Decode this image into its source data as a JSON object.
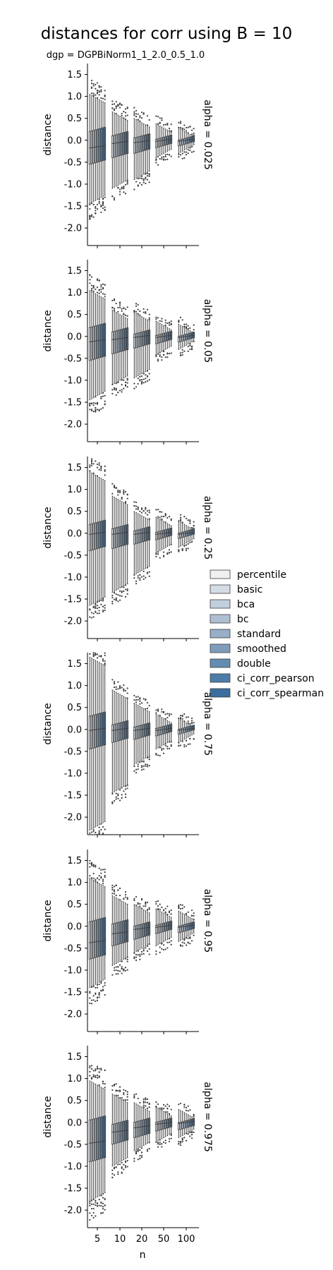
{
  "chart_data": {
    "type": "box",
    "title": "distances for corr using B = 10",
    "subtitle": "dgp = DGPBiNorm1_1_2.0_0.5_1.0",
    "xlabel": "n",
    "ylabel": "distance",
    "categories": [
      "5",
      "10",
      "20",
      "50",
      "100"
    ],
    "yticks": [
      "1.5",
      "1.0",
      "0.5",
      "0.0",
      "-0.5",
      "-1.0",
      "-1.5",
      "-2.0"
    ],
    "ylim": [
      -2.4,
      1.75
    ],
    "legend": {
      "placement": "right",
      "entries": [
        "percentile",
        "basic",
        "bca",
        "bc",
        "standard",
        "smoothed",
        "double",
        "ci_corr_pearson",
        "ci_corr_spearman"
      ],
      "colors": [
        "#f0f0f0",
        "#d4dde6",
        "#c1cfdc",
        "#aebfd2",
        "#96aec6",
        "#7f9db9",
        "#648cb0",
        "#4d7ca8",
        "#3b6e9c"
      ]
    },
    "facets": [
      {
        "row_label": "alpha = 0.025",
        "groups": [
          {
            "n": "5",
            "q1": -0.5,
            "median": -0.15,
            "q3": 0.25,
            "low": -1.35,
            "high": 0.95
          },
          {
            "n": "10",
            "q1": -0.35,
            "median": -0.05,
            "q3": 0.15,
            "low": -1.0,
            "high": 0.55
          },
          {
            "n": "20",
            "q1": -0.25,
            "median": -0.03,
            "q3": 0.1,
            "low": -0.8,
            "high": 0.4
          },
          {
            "n": "50",
            "q1": -0.12,
            "median": 0.0,
            "q3": 0.07,
            "low": -0.3,
            "high": 0.28
          },
          {
            "n": "100",
            "q1": -0.08,
            "median": 0.0,
            "q3": 0.05,
            "low": -0.2,
            "high": 0.18
          }
        ]
      },
      {
        "row_label": "alpha = 0.05",
        "groups": [
          {
            "n": "5",
            "q1": -0.5,
            "median": -0.1,
            "q3": 0.25,
            "low": -1.35,
            "high": 0.95
          },
          {
            "n": "10",
            "q1": -0.35,
            "median": -0.05,
            "q3": 0.15,
            "low": -1.0,
            "high": 0.5
          },
          {
            "n": "20",
            "q1": -0.22,
            "median": 0.0,
            "q3": 0.1,
            "low": -0.85,
            "high": 0.45
          },
          {
            "n": "50",
            "q1": -0.12,
            "median": 0.0,
            "q3": 0.07,
            "low": -0.32,
            "high": 0.25
          },
          {
            "n": "100",
            "q1": -0.08,
            "median": 0.0,
            "q3": 0.05,
            "low": -0.2,
            "high": 0.18
          }
        ]
      },
      {
        "row_label": "alpha = 0.25",
        "groups": [
          {
            "n": "5",
            "q1": -0.35,
            "median": 0.0,
            "q3": 0.25,
            "low": -1.55,
            "high": 1.3
          },
          {
            "n": "10",
            "q1": -0.3,
            "median": 0.0,
            "q3": 0.15,
            "low": -1.25,
            "high": 0.75
          },
          {
            "n": "20",
            "q1": -0.2,
            "median": 0.0,
            "q3": 0.1,
            "low": -0.85,
            "high": 0.4
          },
          {
            "n": "50",
            "q1": -0.1,
            "median": 0.0,
            "q3": 0.07,
            "low": -0.35,
            "high": 0.27
          },
          {
            "n": "100",
            "q1": -0.07,
            "median": 0.0,
            "q3": 0.05,
            "low": -0.22,
            "high": 0.18
          }
        ]
      },
      {
        "row_label": "alpha = 0.75",
        "groups": [
          {
            "n": "5",
            "q1": -0.4,
            "median": 0.0,
            "q3": 0.35,
            "low": -2.2,
            "high": 1.55
          },
          {
            "n": "10",
            "q1": -0.25,
            "median": 0.0,
            "q3": 0.15,
            "low": -1.35,
            "high": 0.8
          },
          {
            "n": "20",
            "q1": -0.18,
            "median": 0.0,
            "q3": 0.1,
            "low": -0.7,
            "high": 0.5
          },
          {
            "n": "50",
            "q1": -0.1,
            "median": 0.0,
            "q3": 0.07,
            "low": -0.35,
            "high": 0.25
          },
          {
            "n": "100",
            "q1": -0.06,
            "median": 0.0,
            "q3": 0.05,
            "low": -0.2,
            "high": 0.15
          }
        ]
      },
      {
        "row_label": "alpha = 0.95",
        "groups": [
          {
            "n": "5",
            "q1": -0.7,
            "median": -0.35,
            "q3": 0.15,
            "low": -1.3,
            "high": 1.0
          },
          {
            "n": "10",
            "q1": -0.4,
            "median": -0.15,
            "q3": 0.1,
            "low": -0.8,
            "high": 0.6
          },
          {
            "n": "20",
            "q1": -0.25,
            "median": -0.05,
            "q3": 0.05,
            "low": -0.5,
            "high": 0.4
          },
          {
            "n": "50",
            "q1": -0.12,
            "median": 0.0,
            "q3": 0.07,
            "low": -0.35,
            "high": 0.3
          },
          {
            "n": "100",
            "q1": -0.1,
            "median": 0.0,
            "q3": 0.05,
            "low": -0.25,
            "high": 0.25
          }
        ]
      },
      {
        "row_label": "alpha = 0.975",
        "groups": [
          {
            "n": "5",
            "q1": -0.85,
            "median": -0.45,
            "q3": 0.1,
            "low": -1.7,
            "high": 0.85
          },
          {
            "n": "10",
            "q1": -0.45,
            "median": -0.2,
            "q3": 0.0,
            "low": -0.9,
            "high": 0.55
          },
          {
            "n": "20",
            "q1": -0.3,
            "median": -0.1,
            "q3": 0.05,
            "low": -0.55,
            "high": 0.35
          },
          {
            "n": "50",
            "q1": -0.15,
            "median": -0.02,
            "q3": 0.05,
            "low": -0.35,
            "high": 0.25
          },
          {
            "n": "100",
            "q1": -0.12,
            "median": 0.0,
            "q3": 0.04,
            "low": -0.25,
            "high": 0.2
          }
        ]
      }
    ]
  }
}
